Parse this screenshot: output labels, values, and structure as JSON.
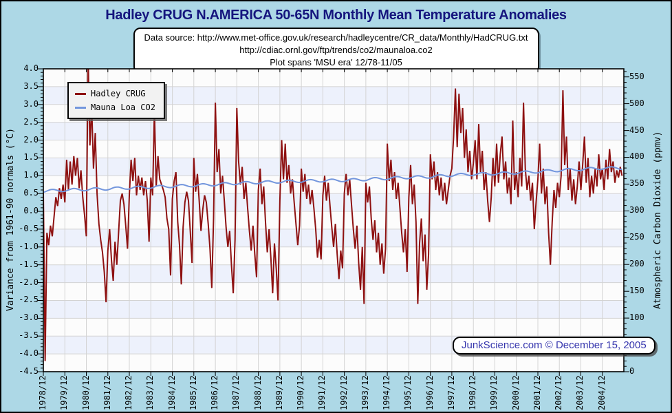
{
  "page": {
    "title": "Hadley CRUG N.AMERICA 50-65N Monthly Mean Temperature Anomalies",
    "info_lines": [
      "Data source: http://www.met-office.gov.uk/research/hadleycentre/CR_data/Monthly/HadCRUG.txt",
      "http://cdiac.ornl.gov/ftp/trends/co2/maunaloa.co2",
      "Plot spans 'MSU era' 12/78-11/05"
    ],
    "watermark": "JunkScience.com © December 15, 2005"
  },
  "legend": {
    "position": "top-left",
    "items": [
      {
        "label": "Hadley CRUG",
        "color": "#8e1111"
      },
      {
        "label": "Mauna Loa CO2",
        "color": "#7396dd"
      }
    ]
  },
  "colors": {
    "page_bg": "#add8e6",
    "title_text": "#15157e",
    "watermark_text": "#3535ad",
    "plot_band_shaded": "#edf1fc",
    "plot_band_white": "#fcfcfc",
    "grid": "#d3d3d3"
  },
  "chart_data": {
    "type": "line",
    "title": "Hadley CRUG N.AMERICA 50-65N Monthly Mean Temperature Anomalies",
    "x_axis": {
      "start": "1978/12",
      "end": "2005/11",
      "months_total": 324,
      "tick_labels": [
        "1978/12",
        "1979/12",
        "1980/12",
        "1981/12",
        "1982/12",
        "1983/12",
        "1984/12",
        "1985/12",
        "1986/12",
        "1987/12",
        "1988/12",
        "1989/12",
        "1990/12",
        "1991/12",
        "1992/12",
        "1993/12",
        "1994/12",
        "1995/12",
        "1996/12",
        "1997/12",
        "1998/12",
        "1999/12",
        "2000/12",
        "2001/12",
        "2002/12",
        "2003/12",
        "2004/12"
      ]
    },
    "left_axis": {
      "label": "Variance from 1961-90 normals (°C)",
      "min": -4.5,
      "max": 4.0,
      "tick_step": 0.5,
      "minor_step": 0.1,
      "tick_labels": [
        "4.0",
        "3.5",
        "3.0",
        "2.5",
        "2.0",
        "1.5",
        "1.0",
        "0.5",
        "0.0",
        "-0.5",
        "-1.0",
        "-1.5",
        "-2.0",
        "-2.5",
        "-3.0",
        "-3.5",
        "-4.0",
        "-4.5"
      ]
    },
    "right_axis": {
      "label": "Atmospheric Carbon Dioxide (ppmv)",
      "min": 0,
      "max": 565,
      "tick_step": 50,
      "minor_step": 10,
      "tick_labels": [
        "550",
        "500",
        "450",
        "400",
        "350",
        "300",
        "250",
        "200",
        "150",
        "100",
        "50",
        "0"
      ]
    },
    "grid": true,
    "legend_position": "top-left",
    "series": [
      {
        "name": "Hadley CRUG",
        "axis": "left",
        "color": "#8e1111",
        "unit": "°C anomaly",
        "monthly_values": [
          0.55,
          -4.2,
          -0.6,
          -0.95,
          -0.4,
          -0.7,
          -0.15,
          0.4,
          0.15,
          0.65,
          0.35,
          0.75,
          0.25,
          1.45,
          0.6,
          1.4,
          0.75,
          1.55,
          1.0,
          1.5,
          0.65,
          1.15,
          0.4,
          -0.1,
          -0.7,
          4.35,
          1.85,
          2.95,
          1.2,
          2.2,
          0.5,
          -0.35,
          -0.8,
          -1.15,
          -1.7,
          -2.55,
          -1.1,
          -0.5,
          -1.35,
          -1.95,
          -0.85,
          -1.5,
          -0.6,
          0.3,
          0.5,
          0.2,
          -0.4,
          -1.05,
          0.45,
          1.45,
          0.85,
          1.5,
          0.45,
          1.0,
          0.6,
          0.95,
          0.45,
          0.85,
          0.3,
          -0.85,
          0.95,
          0.45,
          2.85,
          0.7,
          1.55,
          0.9,
          0.75,
          0.6,
          0.4,
          -0.2,
          -0.5,
          -1.8,
          0.35,
          0.85,
          1.1,
          -0.3,
          -0.95,
          -2.05,
          -0.45,
          0.25,
          0.55,
          0.3,
          -0.55,
          -1.45,
          1.5,
          0.55,
          1.05,
          0.3,
          -0.55,
          0.05,
          0.45,
          0.25,
          -0.35,
          -1.05,
          -2.15,
          -0.2,
          3.05,
          1.1,
          1.75,
          0.5,
          1.0,
          0.3,
          -0.45,
          -1.0,
          -0.55,
          -1.5,
          -2.3,
          -0.8,
          2.9,
          1.4,
          0.75,
          1.25,
          0.35,
          0.8,
          0.1,
          -0.55,
          -1.1,
          -0.4,
          -1.2,
          -1.85,
          0.6,
          1.2,
          0.2,
          0.7,
          -0.3,
          -1.15,
          -0.5,
          -1.3,
          -2.3,
          -0.9,
          -1.6,
          -2.5,
          0.3,
          2.0,
          0.9,
          1.9,
          0.8,
          1.3,
          0.5,
          0.9,
          0.25,
          -0.35,
          -0.95,
          -0.4,
          1.2,
          0.55,
          1.05,
          0.35,
          0.75,
          0.2,
          0.6,
          0.1,
          -0.5,
          -1.3,
          -0.8,
          -1.35,
          0.45,
          1.0,
          0.3,
          0.8,
          0.15,
          -0.45,
          -1.0,
          -0.35,
          -1.2,
          -1.9,
          -1.1,
          -1.6,
          0.5,
          1.05,
          0.45,
          0.9,
          0.2,
          -0.5,
          -1.05,
          -0.4,
          -1.45,
          -2.2,
          -1.0,
          -2.6,
          0.8,
          0.25,
          0.7,
          -0.2,
          -0.8,
          -0.25,
          -1.15,
          -0.6,
          -1.5,
          -0.9,
          -1.75,
          -1.05,
          1.9,
          0.85,
          1.45,
          0.6,
          1.1,
          0.35,
          0.8,
          0.1,
          -0.6,
          -1.15,
          -0.5,
          -1.7,
          0.4,
          1.3,
          0.2,
          0.75,
          -0.3,
          -2.6,
          -0.9,
          -0.2,
          -1.4,
          -0.65,
          -2.2,
          -1.2,
          1.6,
          0.9,
          1.4,
          0.6,
          1.1,
          0.45,
          0.95,
          0.3,
          0.8,
          0.2,
          0.6,
          1.0,
          1.2,
          2.1,
          3.45,
          1.8,
          3.3,
          2.2,
          2.9,
          1.5,
          2.3,
          1.1,
          1.7,
          0.9,
          1.35,
          2.0,
          0.9,
          2.45,
          1.1,
          1.7,
          0.6,
          1.1,
          0.3,
          -0.3,
          0.4,
          1.5,
          0.7,
          1.9,
          0.8,
          1.6,
          2.1,
          0.9,
          1.4,
          0.5,
          0.95,
          0.2,
          2.55,
          0.6,
          1.1,
          0.4,
          1.5,
          0.7,
          3.05,
          1.2,
          0.6,
          1.0,
          0.3,
          0.8,
          -0.5,
          0.25,
          0.9,
          1.9,
          0.5,
          1.2,
          0.2,
          0.7,
          -0.6,
          -1.5,
          -0.3,
          0.6,
          0.1,
          0.8,
          0.4,
          1.0,
          3.4,
          1.3,
          2.1,
          0.6,
          1.2,
          0.3,
          0.9,
          0.2,
          0.7,
          1.4,
          0.6,
          1.3,
          2.1,
          0.8,
          1.5,
          0.4,
          1.0,
          0.5,
          1.2,
          0.7,
          1.6,
          0.9,
          1.2,
          0.6,
          1.45,
          0.9,
          1.75,
          1.1,
          1.4,
          0.8,
          1.15,
          0.95,
          1.25,
          1.0
        ]
      },
      {
        "name": "Mauna Loa CO2",
        "axis": "right",
        "color": "#7396dd",
        "unit": "ppmv",
        "annual_years": [
          1979,
          1980,
          1981,
          1982,
          1983,
          1984,
          1985,
          1986,
          1987,
          1988,
          1989,
          1990,
          1991,
          1992,
          1993,
          1994,
          1995,
          1996,
          1997,
          1998,
          1999,
          2000,
          2001,
          2002,
          2003,
          2004,
          2005
        ],
        "annual_values": [
          336.8,
          338.7,
          340.1,
          341.4,
          343.0,
          344.4,
          346.0,
          347.4,
          349.2,
          351.6,
          353.1,
          354.4,
          355.6,
          356.4,
          357.1,
          358.8,
          360.8,
          362.6,
          363.7,
          366.7,
          368.4,
          369.5,
          371.1,
          373.2,
          375.8,
          377.5,
          379.8
        ],
        "seasonal_amplitude_ppm": 2.5
      }
    ]
  }
}
